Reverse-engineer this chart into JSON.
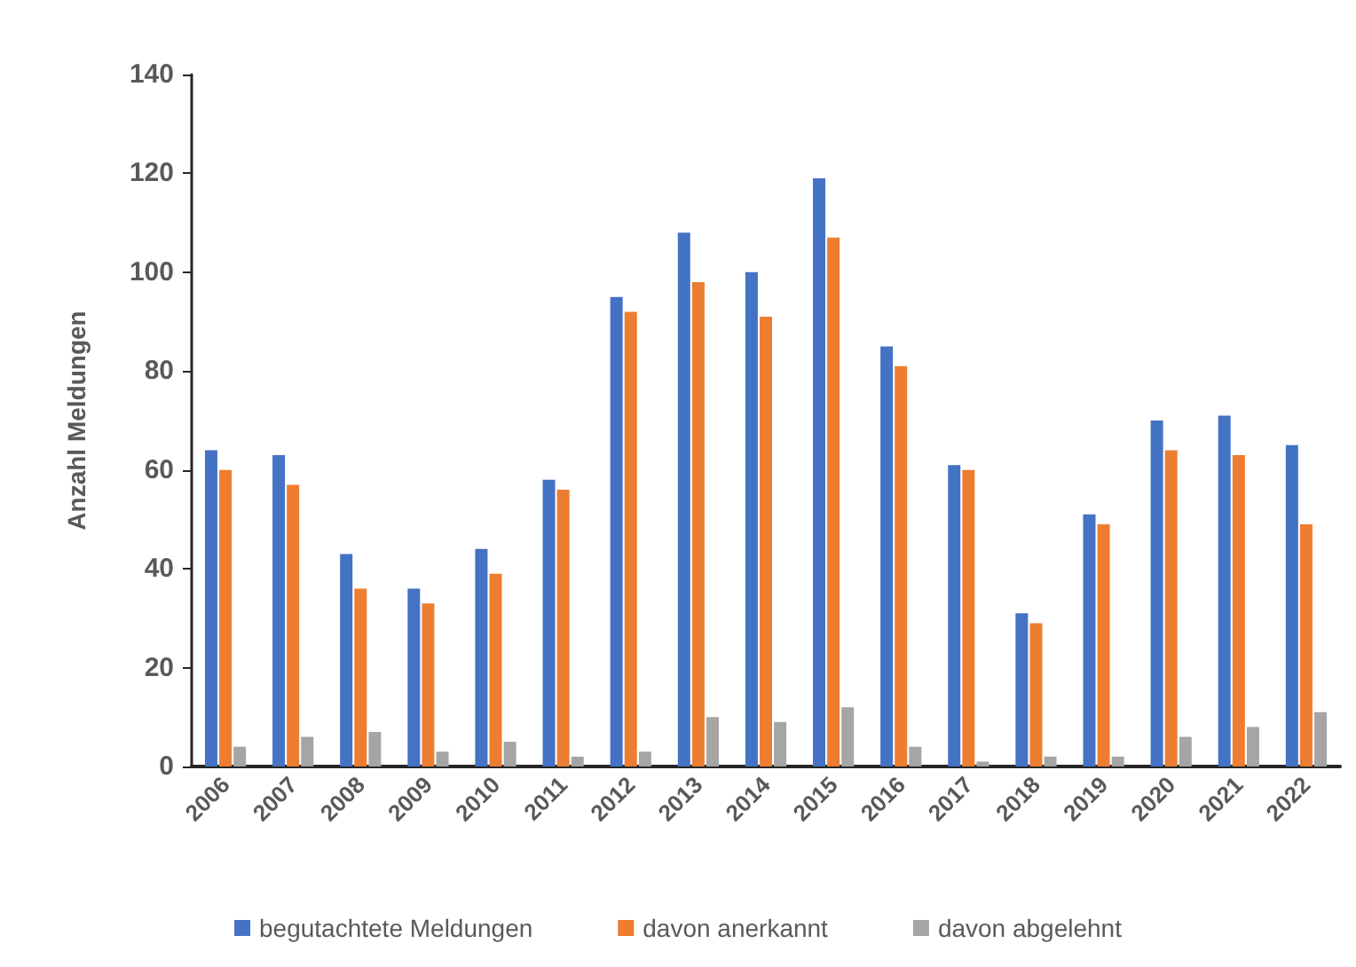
{
  "chart_data": {
    "type": "bar",
    "ylabel": "Anzahl Meldungen",
    "categories": [
      "2006",
      "2007",
      "2008",
      "2009",
      "2010",
      "2011",
      "2012",
      "2013",
      "2014",
      "2015",
      "2016",
      "2017",
      "2018",
      "2019",
      "2020",
      "2021",
      "2022"
    ],
    "series": [
      {
        "name": "begutachtete Meldungen",
        "color": "#4472c4",
        "values": [
          64,
          63,
          43,
          36,
          44,
          58,
          95,
          108,
          100,
          119,
          85,
          61,
          31,
          51,
          70,
          71,
          65
        ]
      },
      {
        "name": "davon anerkannt",
        "color": "#ed7d31",
        "values": [
          60,
          57,
          36,
          33,
          39,
          56,
          92,
          98,
          91,
          107,
          81,
          60,
          29,
          49,
          64,
          63,
          49
        ]
      },
      {
        "name": "davon abgelehnt",
        "color": "#a5a5a5",
        "values": [
          4,
          6,
          7,
          3,
          5,
          2,
          3,
          10,
          9,
          12,
          4,
          1,
          2,
          2,
          6,
          8,
          11
        ]
      }
    ],
    "ylim": [
      0,
      140
    ],
    "yticks": [
      0,
      20,
      40,
      60,
      80,
      100,
      120,
      140
    ],
    "grid": false,
    "legend": "bottom"
  }
}
